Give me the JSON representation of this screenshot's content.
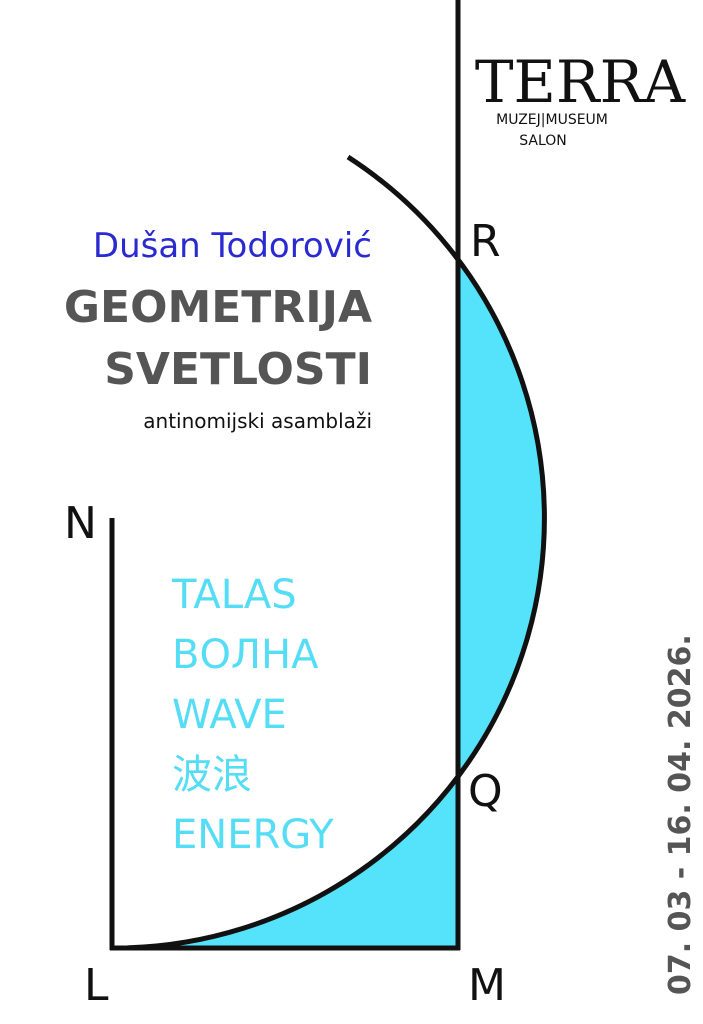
{
  "logo": {
    "name": "TERRA",
    "line1": "MUZEJ|MUSEUM",
    "line2": "SALON"
  },
  "author": "Dušan Todorović",
  "title": [
    "GEOMETRIJA",
    "SVETLOSTI"
  ],
  "subtitle": "antinomijski asamblaži",
  "words": [
    "TALAS",
    "ВОЛНА",
    "WAVE",
    "波浪",
    "ENERGY"
  ],
  "points": {
    "N": "N",
    "R": "R",
    "Q": "Q",
    "L": "L",
    "M": "M"
  },
  "dates": "07. 03 - 16. 04. 2026."
}
